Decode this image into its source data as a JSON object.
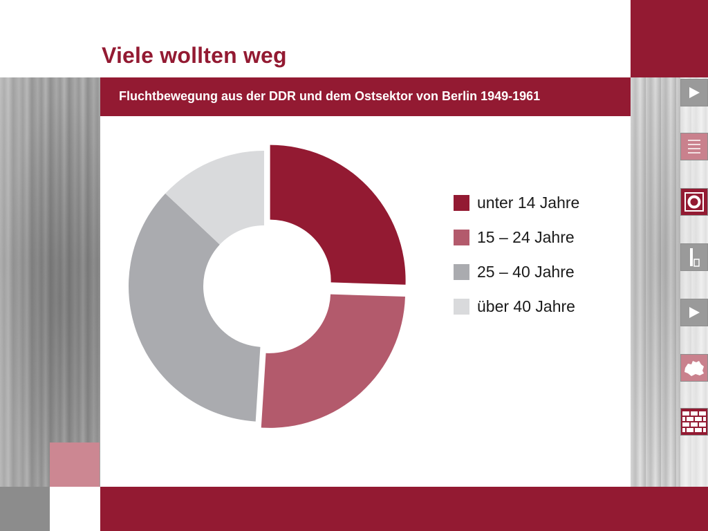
{
  "header": {
    "title": "Viele wollten weg",
    "subtitle": "Fluchtbewegung aus der DDR und dem Ostsektor von Berlin 1949-1961"
  },
  "colors": {
    "brand": "#931a32",
    "brand_light": "#b35a6c",
    "gray": "#aaabaf",
    "gray_light": "#d9dadc"
  },
  "nav": {
    "items": [
      {
        "name": "play-icon",
        "style": "gray"
      },
      {
        "name": "list-icon",
        "style": "pink"
      },
      {
        "name": "ring-icon",
        "style": "crimson"
      },
      {
        "name": "info-icon",
        "style": "gray"
      },
      {
        "name": "play-icon",
        "style": "gray"
      },
      {
        "name": "berlin-map-icon",
        "style": "pink"
      },
      {
        "name": "wall-icon",
        "style": "crimson"
      }
    ]
  },
  "chart_data": {
    "type": "pie",
    "variant": "donut",
    "title": "Fluchtbewegung aus der DDR und dem Ostsektor von Berlin 1949-1961",
    "categories": [
      "unter 14 Jahre",
      "15 – 24 Jahre",
      "25 – 40 Jahre",
      "über 40 Jahre"
    ],
    "values": [
      25.5,
      25.5,
      36,
      13
    ],
    "colors": [
      "#931a32",
      "#b35a6c",
      "#aaabaf",
      "#d9dadc"
    ],
    "exploded_slices": [
      "unter 14 Jahre",
      "15 – 24 Jahre"
    ],
    "legend_position": "right"
  }
}
